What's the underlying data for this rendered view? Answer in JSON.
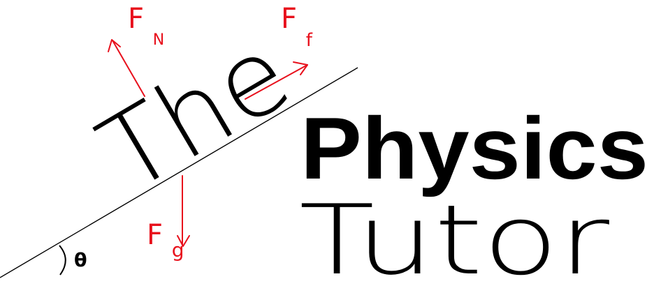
{
  "logo": {
    "word_the": "The",
    "word_physics": "Physics",
    "word_tutor": "Tutor",
    "angle_label": "θ",
    "colors": {
      "text": "#000000",
      "force": "#e8101c",
      "background": "#ffffff"
    }
  },
  "forces": {
    "normal": {
      "symbol": "F",
      "subscript": "N"
    },
    "friction": {
      "symbol": "F",
      "subscript": "f"
    },
    "gravity": {
      "symbol": "F",
      "subscript": "g"
    }
  }
}
